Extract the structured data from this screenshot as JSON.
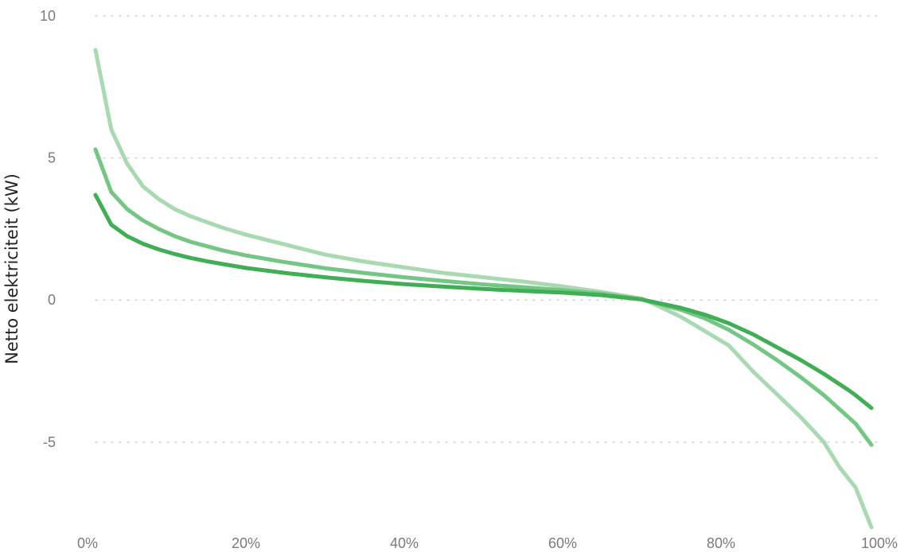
{
  "chart_data": {
    "type": "line",
    "title": "",
    "xlabel": "",
    "ylabel": "Netto elektriciteit (kW)",
    "xlim": [
      0,
      100
    ],
    "ylim": [
      -8,
      10
    ],
    "x_ticks": [
      {
        "value": 0,
        "label": "0%"
      },
      {
        "value": 20,
        "label": "20%"
      },
      {
        "value": 40,
        "label": "40%"
      },
      {
        "value": 60,
        "label": "60%"
      },
      {
        "value": 80,
        "label": "80%"
      },
      {
        "value": 100,
        "label": "100%"
      }
    ],
    "y_ticks": [
      {
        "value": 10,
        "label": "10"
      },
      {
        "value": 5,
        "label": "5"
      },
      {
        "value": 0,
        "label": "0"
      },
      {
        "value": -5,
        "label": "-5"
      }
    ],
    "grid": true,
    "legend": "none",
    "series": [
      {
        "color": "#a8d9b0",
        "points": [
          [
            1,
            8.8
          ],
          [
            3,
            6.0
          ],
          [
            5,
            4.8
          ],
          [
            7,
            4.0
          ],
          [
            9,
            3.55
          ],
          [
            11,
            3.2
          ],
          [
            13,
            2.95
          ],
          [
            15,
            2.75
          ],
          [
            17,
            2.55
          ],
          [
            20,
            2.3
          ],
          [
            25,
            1.95
          ],
          [
            30,
            1.6
          ],
          [
            35,
            1.35
          ],
          [
            40,
            1.15
          ],
          [
            45,
            0.95
          ],
          [
            50,
            0.8
          ],
          [
            55,
            0.65
          ],
          [
            60,
            0.48
          ],
          [
            65,
            0.28
          ],
          [
            70,
            0.05
          ],
          [
            72,
            -0.2
          ],
          [
            75,
            -0.6
          ],
          [
            78,
            -1.1
          ],
          [
            81,
            -1.6
          ],
          [
            84,
            -2.5
          ],
          [
            87,
            -3.3
          ],
          [
            90,
            -4.1
          ],
          [
            93,
            -5.0
          ],
          [
            95,
            -5.9
          ],
          [
            97,
            -6.6
          ],
          [
            99,
            -8.0
          ]
        ]
      },
      {
        "color": "#73c683",
        "points": [
          [
            1,
            5.3
          ],
          [
            3,
            3.8
          ],
          [
            5,
            3.2
          ],
          [
            7,
            2.8
          ],
          [
            9,
            2.5
          ],
          [
            11,
            2.25
          ],
          [
            13,
            2.05
          ],
          [
            15,
            1.9
          ],
          [
            17,
            1.75
          ],
          [
            20,
            1.57
          ],
          [
            25,
            1.33
          ],
          [
            30,
            1.12
          ],
          [
            35,
            0.95
          ],
          [
            40,
            0.8
          ],
          [
            45,
            0.67
          ],
          [
            50,
            0.55
          ],
          [
            55,
            0.45
          ],
          [
            60,
            0.35
          ],
          [
            65,
            0.22
          ],
          [
            70,
            0.02
          ],
          [
            75,
            -0.35
          ],
          [
            78,
            -0.65
          ],
          [
            81,
            -1.05
          ],
          [
            84,
            -1.55
          ],
          [
            87,
            -2.1
          ],
          [
            90,
            -2.7
          ],
          [
            93,
            -3.35
          ],
          [
            96,
            -4.1
          ],
          [
            97,
            -4.35
          ],
          [
            99,
            -5.1
          ]
        ]
      },
      {
        "color": "#3fae55",
        "points": [
          [
            1,
            3.7
          ],
          [
            3,
            2.65
          ],
          [
            5,
            2.25
          ],
          [
            7,
            1.98
          ],
          [
            9,
            1.78
          ],
          [
            11,
            1.62
          ],
          [
            13,
            1.48
          ],
          [
            15,
            1.37
          ],
          [
            17,
            1.27
          ],
          [
            20,
            1.13
          ],
          [
            25,
            0.95
          ],
          [
            30,
            0.8
          ],
          [
            35,
            0.67
          ],
          [
            40,
            0.56
          ],
          [
            45,
            0.47
          ],
          [
            50,
            0.39
          ],
          [
            55,
            0.32
          ],
          [
            60,
            0.26
          ],
          [
            65,
            0.17
          ],
          [
            70,
            0.02
          ],
          [
            75,
            -0.28
          ],
          [
            78,
            -0.52
          ],
          [
            81,
            -0.82
          ],
          [
            84,
            -1.2
          ],
          [
            87,
            -1.65
          ],
          [
            90,
            -2.1
          ],
          [
            93,
            -2.6
          ],
          [
            96,
            -3.15
          ],
          [
            97,
            -3.35
          ],
          [
            99,
            -3.8
          ]
        ]
      }
    ]
  }
}
